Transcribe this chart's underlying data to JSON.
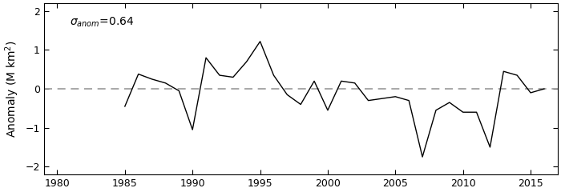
{
  "years": [
    1985,
    1986,
    1987,
    1988,
    1989,
    1990,
    1991,
    1992,
    1993,
    1994,
    1995,
    1996,
    1997,
    1998,
    1999,
    2000,
    2001,
    2002,
    2003,
    2004,
    2005,
    2006,
    2007,
    2008,
    2009,
    2010,
    2011,
    2012,
    2013,
    2014,
    2015,
    2016
  ],
  "values": [
    -0.45,
    0.38,
    0.25,
    0.15,
    -0.05,
    -1.05,
    0.8,
    0.35,
    0.3,
    0.7,
    1.22,
    0.35,
    -0.15,
    -0.4,
    0.2,
    -0.55,
    0.2,
    0.15,
    -0.3,
    -0.25,
    -0.2,
    -0.3,
    -1.75,
    -0.55,
    -0.35,
    -0.6,
    -0.6,
    -1.5,
    0.45,
    0.35,
    -0.1,
    0.0
  ],
  "xlim": [
    1979,
    2017
  ],
  "ylim": [
    -2.2,
    2.2
  ],
  "xticks": [
    1980,
    1985,
    1990,
    1995,
    2000,
    2005,
    2010,
    2015
  ],
  "yticks": [
    -2,
    -1,
    0,
    1,
    2
  ],
  "ylabel": "Anomaly (M km$^2$)",
  "sigma_value": "=0.64",
  "line_color": "#000000",
  "dash_color": "#999999",
  "background_color": "#ffffff",
  "tick_fontsize": 9,
  "label_fontsize": 10,
  "annotation_fontsize": 10
}
